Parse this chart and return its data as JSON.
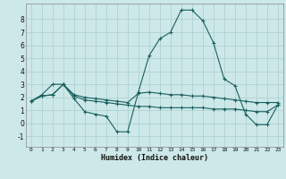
{
  "xlabel": "Humidex (Indice chaleur)",
  "background_color": "#cde8e8",
  "grid_color": "#aacece",
  "line_color": "#1a6060",
  "xlim": [
    -0.5,
    23.5
  ],
  "ylim": [
    -1.8,
    9.2
  ],
  "xticks": [
    0,
    1,
    2,
    3,
    4,
    5,
    6,
    7,
    8,
    9,
    10,
    11,
    12,
    13,
    14,
    15,
    16,
    17,
    18,
    19,
    20,
    21,
    22,
    23
  ],
  "yticks": [
    -1,
    0,
    1,
    2,
    3,
    4,
    5,
    6,
    7,
    8
  ],
  "line1_x": [
    0,
    1,
    2,
    3,
    4,
    5,
    6,
    7,
    8,
    9,
    10,
    11,
    12,
    13,
    14,
    15,
    16,
    17,
    18,
    19,
    20,
    21,
    22,
    23
  ],
  "line1_y": [
    1.7,
    2.2,
    3.0,
    3.0,
    1.9,
    0.9,
    0.7,
    0.55,
    -0.65,
    -0.65,
    2.4,
    5.2,
    6.5,
    7.0,
    8.7,
    8.7,
    7.9,
    6.2,
    3.4,
    2.9,
    0.7,
    -0.1,
    -0.1,
    1.4
  ],
  "line2_x": [
    0,
    1,
    2,
    3,
    4,
    5,
    6,
    7,
    8,
    9,
    10,
    11,
    12,
    13,
    14,
    15,
    16,
    17,
    18,
    19,
    20,
    21,
    22,
    23
  ],
  "line2_y": [
    1.7,
    2.1,
    2.2,
    3.0,
    2.2,
    2.0,
    1.9,
    1.8,
    1.7,
    1.6,
    2.3,
    2.4,
    2.3,
    2.2,
    2.2,
    2.1,
    2.1,
    2.0,
    1.9,
    1.8,
    1.7,
    1.6,
    1.6,
    1.6
  ],
  "line3_x": [
    0,
    1,
    2,
    3,
    4,
    5,
    6,
    7,
    8,
    9,
    10,
    11,
    12,
    13,
    14,
    15,
    16,
    17,
    18,
    19,
    20,
    21,
    22,
    23
  ],
  "line3_y": [
    1.7,
    2.1,
    2.2,
    3.0,
    2.1,
    1.8,
    1.7,
    1.6,
    1.5,
    1.4,
    1.3,
    1.3,
    1.2,
    1.2,
    1.2,
    1.2,
    1.2,
    1.1,
    1.1,
    1.1,
    1.0,
    0.9,
    0.9,
    1.4
  ]
}
